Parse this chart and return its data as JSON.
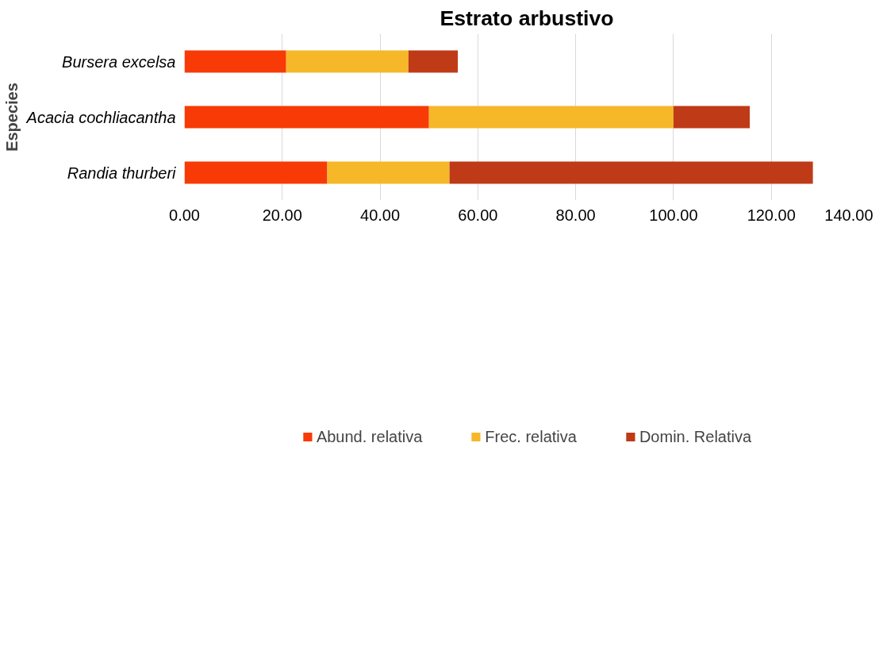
{
  "chart_data": {
    "type": "bar",
    "orientation": "horizontal",
    "stacked": true,
    "title": "Estrato arbustivo",
    "ylabel": "Especies",
    "categories": [
      "Bursera excelsa",
      "Acacia cochliacantha",
      "Randia thurberi"
    ],
    "series": [
      {
        "name": "Abund. relativa",
        "color": "#f83a06",
        "values": [
          20.8,
          50.0,
          29.2
        ]
      },
      {
        "name": "Frec. relativa",
        "color": "#f6b729",
        "values": [
          25.0,
          50.0,
          25.0
        ]
      },
      {
        "name": "Domin. Relativa",
        "color": "#bf3a17",
        "values": [
          10.1,
          15.6,
          74.3
        ]
      }
    ],
    "xlim": [
      0,
      140
    ],
    "xticks": [
      {
        "value": 0,
        "label": "0.00"
      },
      {
        "value": 20,
        "label": "20.00"
      },
      {
        "value": 40,
        "label": "40.00"
      },
      {
        "value": 60,
        "label": "60.00"
      },
      {
        "value": 80,
        "label": "80.00"
      },
      {
        "value": 100,
        "label": "100.00"
      },
      {
        "value": 120,
        "label": "120.00"
      },
      {
        "value": 140,
        "label": "140.00"
      }
    ],
    "grid": "x",
    "legend": "bottom"
  }
}
